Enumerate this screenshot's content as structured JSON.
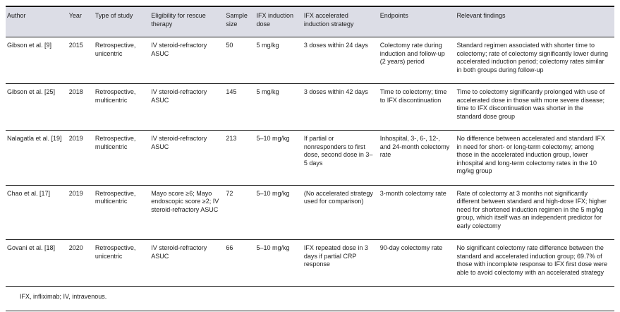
{
  "colors": {
    "header_bg": "#dcdde6",
    "rule_dark": "#1a1a1a",
    "text": "#1c1c1c"
  },
  "table": {
    "columns": [
      "Author",
      "Year",
      "Type of study",
      "Eligibility for rescue therapy",
      "Sample size",
      "IFX induction dose",
      "IFX accelerated induction strategy",
      "Endpoints",
      "Relevant findings"
    ],
    "rows": [
      [
        "Gibson et al. [9]",
        "2015",
        "Retrospective, unicentric",
        "IV steroid-refractory ASUC",
        "50",
        "5 mg/kg",
        "3 doses within 24 days",
        "Colectomy rate during induction and follow-up (2 years) period",
        "Standard regimen associated with shorter time to colectomy; rate of colectomy significantly lower during accelerated induction period; colectomy rates similar in both groups during follow-up"
      ],
      [
        "Gibson et al. [25]",
        "2018",
        "Retrospective, multicentric",
        "IV steroid-refractory ASUC",
        "145",
        "5 mg/kg",
        "3 doses within 42 days",
        "Time to colectomy; time to IFX discontinuation",
        "Time to colectomy significantly prolonged with use of accelerated dose in those with more severe disease; time to IFX discontinuation was shorter in the standard dose group"
      ],
      [
        "Nalagatla et al. [19]",
        "2019",
        "Retrospective, multicentric",
        "IV steroid-refractory ASUC",
        "213",
        "5–10 mg/kg",
        "If partial or nonresponders to first dose, second dose in 3–5 days",
        "Inhospital, 3-, 6-, 12-, and 24-month colectomy rate",
        "No difference between accelerated and standard IFX in need for short- or long-term colectomy; among those in the accelerated induction group, lower inhospital and long-term colectomy rates in the 10 mg/kg group"
      ],
      [
        "Chao et al. [17]",
        "2019",
        "Retrospective, multicentric",
        "Mayo score ≥6; Mayo endoscopic score ≥2; IV steroid-refractory ASUC",
        "72",
        "5–10 mg/kg",
        "(No accelerated strategy used for comparison)",
        "3-month colectomy rate",
        "Rate of colectomy at 3 months not significantly different between standard and high-dose IFX; higher need for shortened induction regimen in the 5 mg/kg group, which itself was an independent predictor for early colectomy"
      ],
      [
        "Govani et al. [18]",
        "2020",
        "Retrospective, unicentric",
        "IV steroid-refractory ASUC",
        "66",
        "5–10 mg/kg",
        "IFX repeated dose in 3 days if partial CRP response",
        "90-day colectomy rate",
        "No significant colectomy rate difference between the standard and accelerated induction group; 69.7% of those with incomplete response to IFX first dose were able to avoid colectomy with an accelerated strategy"
      ]
    ],
    "footnote": "IFX, infliximab; IV, intravenous."
  }
}
